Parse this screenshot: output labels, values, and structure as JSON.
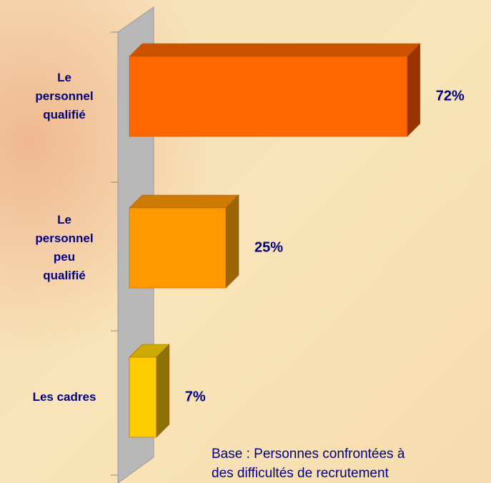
{
  "chart_data": {
    "type": "bar3d-horizontal",
    "categories": [
      "Le\npersonnel\nqualifié",
      "Le\npersonnel\npeu\nqualifié",
      "Les cadres"
    ],
    "values": [
      72,
      25,
      7
    ],
    "value_labels": [
      "72%",
      "25%",
      "7%"
    ],
    "colors": [
      [
        "#ff6600",
        "#cc5200",
        "#993300"
      ],
      [
        "#ff9900",
        "#cc7a00",
        "#996600"
      ],
      [
        "#ffcc00",
        "#ccaa00",
        "#8c7000"
      ]
    ],
    "xlim": [
      0,
      90
    ],
    "note": "Base : Personnes confrontées à\ndes difficultés de recrutement"
  }
}
